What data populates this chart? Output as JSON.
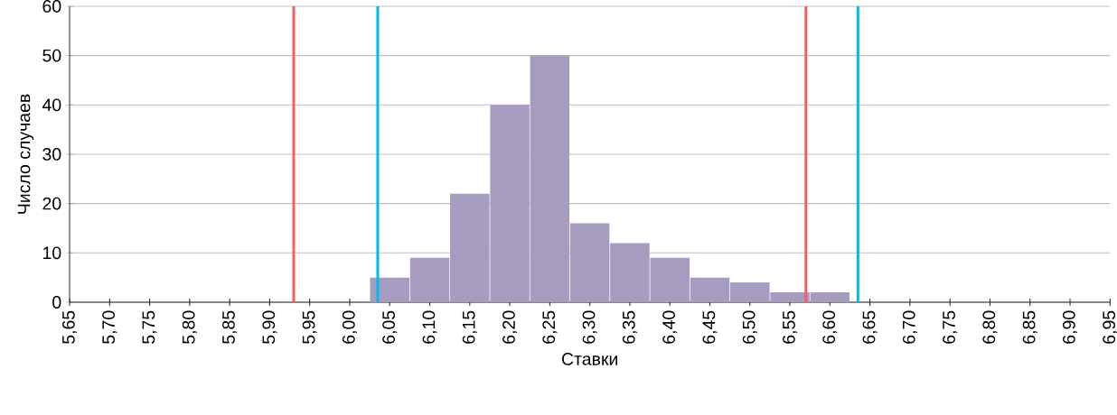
{
  "chart_data": {
    "type": "bar",
    "xlabel": "Ставки",
    "ylabel": "Число случаев",
    "x": [
      6.05,
      6.1,
      6.15,
      6.2,
      6.25,
      6.3,
      6.35,
      6.4,
      6.45,
      6.5,
      6.55,
      6.6
    ],
    "values": [
      5,
      9,
      22,
      40,
      50,
      16,
      12,
      9,
      5,
      4,
      2,
      2
    ],
    "color": "#a59cc0",
    "xlim": [
      5.65,
      6.95
    ],
    "xticks": [
      {
        "value": 5.65,
        "label": "5,65"
      },
      {
        "value": 5.7,
        "label": "5,70"
      },
      {
        "value": 5.75,
        "label": "5,75"
      },
      {
        "value": 5.8,
        "label": "5,80"
      },
      {
        "value": 5.85,
        "label": "5,85"
      },
      {
        "value": 5.9,
        "label": "5,90"
      },
      {
        "value": 5.95,
        "label": "5,95"
      },
      {
        "value": 6.0,
        "label": "6,00"
      },
      {
        "value": 6.05,
        "label": "6,05"
      },
      {
        "value": 6.1,
        "label": "6,10"
      },
      {
        "value": 6.15,
        "label": "6,15"
      },
      {
        "value": 6.2,
        "label": "6,20"
      },
      {
        "value": 6.25,
        "label": "6,25"
      },
      {
        "value": 6.3,
        "label": "6,30"
      },
      {
        "value": 6.35,
        "label": "6,35"
      },
      {
        "value": 6.4,
        "label": "6,40"
      },
      {
        "value": 6.45,
        "label": "6,45"
      },
      {
        "value": 6.5,
        "label": "6,50"
      },
      {
        "value": 6.55,
        "label": "6,55"
      },
      {
        "value": 6.6,
        "label": "6,60"
      },
      {
        "value": 6.65,
        "label": "6,65"
      },
      {
        "value": 6.7,
        "label": "6,70"
      },
      {
        "value": 6.75,
        "label": "6,75"
      },
      {
        "value": 6.8,
        "label": "6,80"
      },
      {
        "value": 6.85,
        "label": "6,85"
      },
      {
        "value": 6.9,
        "label": "6,90"
      },
      {
        "value": 6.95,
        "label": "6,95"
      }
    ],
    "ylim": [
      0,
      60
    ],
    "yticks": [
      0,
      10,
      20,
      30,
      40,
      50,
      60
    ],
    "grid": "y",
    "ref_lines": [
      {
        "axis": "x",
        "value": 5.93,
        "color": "#f25f5f"
      },
      {
        "axis": "x",
        "value": 6.035,
        "color": "#00b9ea"
      },
      {
        "axis": "x",
        "value": 6.57,
        "color": "#f25f5f"
      },
      {
        "axis": "x",
        "value": 6.635,
        "color": "#00b9ea"
      }
    ]
  }
}
